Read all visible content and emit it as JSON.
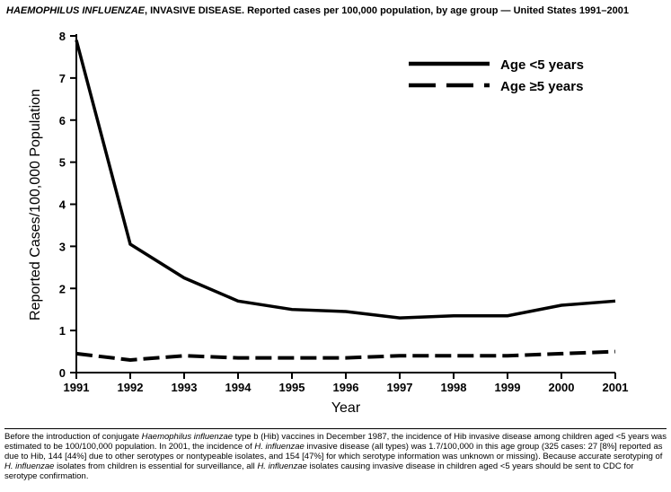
{
  "title": {
    "italic": "HAEMOPHILUS INFLUENZAE",
    "rest": ", INVASIVE DISEASE. Reported cases per 100,000 population, by age group — United States 1991–2001"
  },
  "chart_data": {
    "type": "line",
    "x": [
      1991,
      1992,
      1993,
      1994,
      1995,
      1996,
      1997,
      1998,
      1999,
      2000,
      2001
    ],
    "series": [
      {
        "name": "Age <5 years",
        "style": "solid",
        "values": [
          7.9,
          3.05,
          2.25,
          1.7,
          1.5,
          1.45,
          1.3,
          1.35,
          1.35,
          1.6,
          1.7
        ]
      },
      {
        "name": "Age ≥5 years",
        "style": "dashed",
        "values": [
          0.45,
          0.3,
          0.4,
          0.35,
          0.35,
          0.35,
          0.4,
          0.4,
          0.4,
          0.45,
          0.5
        ]
      }
    ],
    "title": "HAEMOPHILUS INFLUENZAE, INVASIVE DISEASE. Reported cases per 100,000 population, by age group — United States 1991–2001",
    "xlabel": "Year",
    "ylabel": "Reported Cases/100,000 Population",
    "ylim": [
      0,
      8
    ],
    "yticks": [
      0,
      1,
      2,
      3,
      4,
      5,
      6,
      7,
      8
    ],
    "grid": false,
    "legend_position": "top-right",
    "line_color": "#000000"
  },
  "footnote": {
    "segments": [
      "Before the introduction of conjugate ",
      "Haemophilus influenzae",
      " type b (Hib) vaccines in December 1987, the incidence of Hib invasive disease among children aged <5 years was estimated to be 100/100,000 population. In 2001, the incidence of ",
      "H. influenzae",
      " invasive disease (all types) was 1.7/100,000 in this age group (325 cases: 27 [8%] reported as due to Hib, 144 [44%] due to other serotypes or nontypeable isolates, and 154 [47%] for which serotype information was unknown or missing). Because accurate serotyping of ",
      "H. influenzae",
      " isolates from children is essential for surveillance, all ",
      "H. influenzae",
      " isolates causing invasive disease in children aged <5 years should be sent to CDC for serotype confirmation."
    ]
  }
}
